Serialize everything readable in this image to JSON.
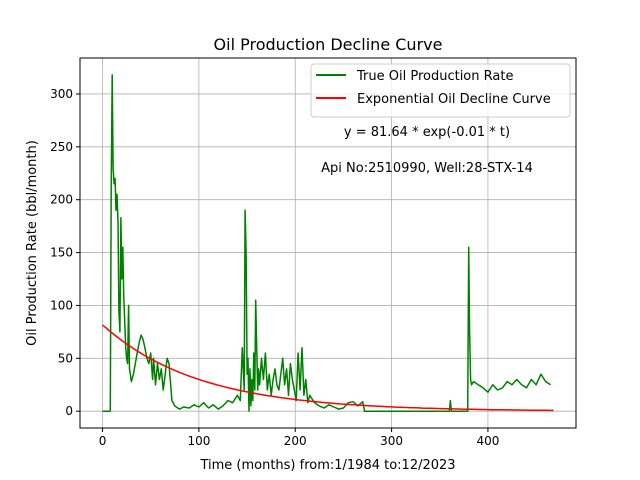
{
  "chart_data": {
    "type": "line",
    "title": "Oil Production Decline Curve",
    "xlabel": "Time (months) from:1/1984 to:12/2023",
    "ylabel": "Oil Production Rate (bbl/month)",
    "xlim": [
      -23.4,
      491.4
    ],
    "ylim": [
      -15.9,
      334
    ],
    "xticks": [
      0,
      100,
      200,
      300,
      400
    ],
    "yticks": [
      0,
      50,
      100,
      150,
      200,
      250,
      300
    ],
    "grid": true,
    "legend_position": "top-right",
    "annotations": [
      "y = 81.64 * exp(-0.01 * t)",
      "Api No:2510990, Well:28-STX-14"
    ],
    "series": [
      {
        "name": "True Oil Production Rate",
        "color": "#008000",
        "x": [
          0,
          8,
          9,
          10,
          11,
          12,
          13,
          14,
          15,
          16,
          17,
          18,
          19,
          20,
          21,
          22,
          23,
          24,
          25,
          26,
          27,
          28,
          30,
          32,
          34,
          36,
          38,
          40,
          42,
          44,
          46,
          48,
          50,
          52,
          53,
          55,
          57,
          59,
          61,
          63,
          65,
          67,
          69,
          72,
          75,
          78,
          80,
          84,
          90,
          95,
          100,
          105,
          110,
          115,
          120,
          125,
          130,
          135,
          140,
          143,
          145,
          147,
          148,
          149,
          150,
          151,
          152,
          153,
          154,
          155,
          156,
          157,
          158,
          159,
          160,
          161,
          162,
          163,
          165,
          167,
          169,
          171,
          173,
          175,
          177,
          179,
          181,
          183,
          185,
          187,
          189,
          191,
          193,
          195,
          197,
          199,
          201,
          203,
          205,
          207,
          209,
          211,
          213,
          215,
          220,
          225,
          230,
          235,
          240,
          245,
          250,
          255,
          260,
          265,
          270,
          272,
          275,
          300,
          340,
          360,
          361,
          362,
          378,
          379,
          380,
          381,
          382,
          383,
          385,
          390,
          395,
          400,
          405,
          410,
          415,
          420,
          425,
          430,
          435,
          440,
          445,
          450,
          455,
          460,
          465
        ],
        "y": [
          0,
          0,
          210,
          318,
          230,
          215,
          220,
          190,
          205,
          180,
          95,
          75,
          183,
          125,
          155,
          110,
          85,
          60,
          50,
          45,
          100,
          40,
          28,
          35,
          45,
          55,
          65,
          72,
          68,
          60,
          50,
          45,
          55,
          30,
          50,
          25,
          45,
          30,
          40,
          20,
          35,
          50,
          45,
          10,
          5,
          3,
          2,
          4,
          3,
          6,
          4,
          8,
          3,
          6,
          2,
          5,
          10,
          8,
          15,
          10,
          60,
          20,
          190,
          150,
          35,
          50,
          0,
          40,
          5,
          30,
          10,
          55,
          20,
          105,
          60,
          20,
          40,
          25,
          50,
          30,
          55,
          20,
          35,
          15,
          30,
          40,
          25,
          20,
          35,
          50,
          25,
          40,
          15,
          45,
          30,
          20,
          10,
          55,
          20,
          60,
          15,
          30,
          8,
          15,
          8,
          5,
          3,
          6,
          4,
          2,
          3,
          8,
          9,
          5,
          9,
          0,
          0,
          0,
          0,
          0,
          10,
          0,
          0,
          0,
          155,
          75,
          30,
          25,
          28,
          25,
          22,
          18,
          25,
          20,
          22,
          28,
          25,
          30,
          25,
          22,
          30,
          25,
          35,
          28,
          25
        ]
      },
      {
        "name": "Exponential Oil Decline Curve",
        "color": "#ff0000",
        "equation": {
          "a": 81.64,
          "b": 0.01
        },
        "x_range": [
          0,
          468
        ]
      }
    ]
  }
}
